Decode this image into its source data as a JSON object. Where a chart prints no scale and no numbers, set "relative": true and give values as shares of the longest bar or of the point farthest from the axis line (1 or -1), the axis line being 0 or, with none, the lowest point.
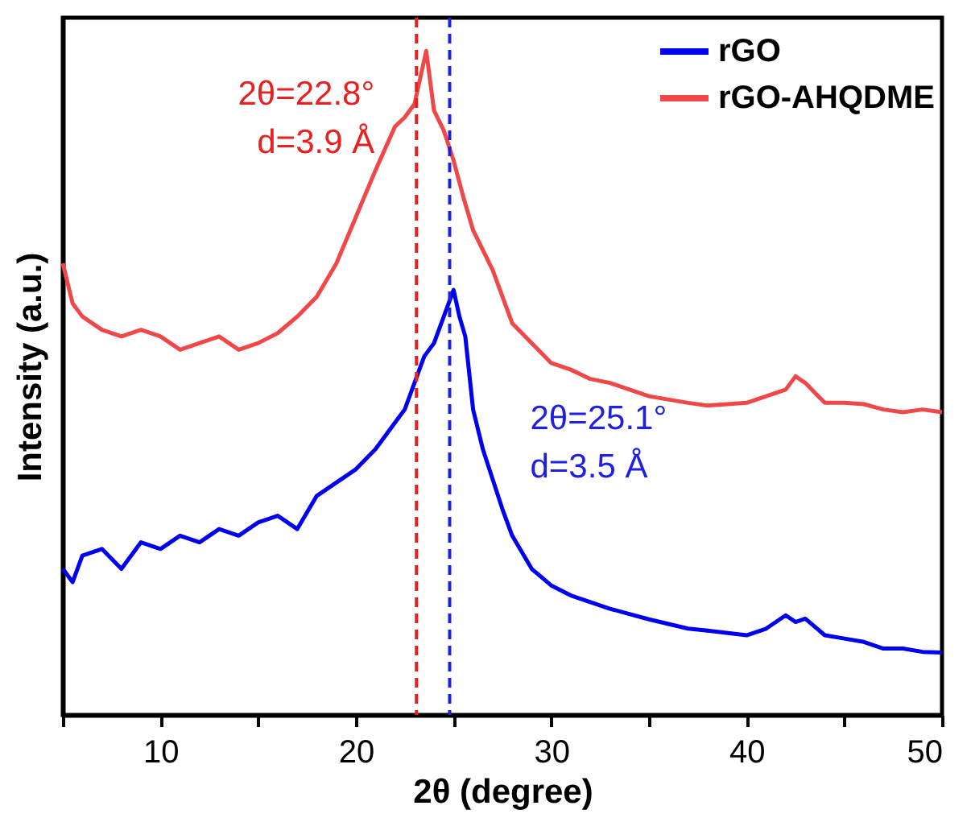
{
  "chart_data": {
    "type": "line",
    "relative": true,
    "xlabel": "2θ (degree)",
    "ylabel": "Intensity (a.u.)",
    "xlim": [
      5,
      50
    ],
    "xticks": [
      {
        "value": 5,
        "label": null
      },
      10,
      {
        "value": 15,
        "label": null
      },
      20,
      {
        "value": 25,
        "label": null
      },
      30,
      {
        "value": 35,
        "label": null
      },
      40,
      {
        "value": 45,
        "label": null
      },
      50
    ],
    "grid": false,
    "legend": "top right",
    "marker": "none",
    "line_style": "solid",
    "series": [
      {
        "name": "rGO",
        "color": "#0000f0",
        "x": [
          5,
          5.5,
          6,
          7,
          8,
          9,
          10,
          11,
          12,
          13,
          14,
          15,
          16,
          17,
          18,
          19,
          20,
          21,
          22,
          22.5,
          23,
          23.5,
          24,
          24.5,
          25,
          25.3,
          25.6,
          26,
          26.5,
          27,
          27.5,
          28,
          29,
          30,
          31,
          32,
          33,
          35,
          37,
          38,
          40,
          41,
          42,
          42.5,
          43,
          44,
          45,
          46,
          47,
          48,
          49,
          50
        ],
        "values": [
          0.22,
          0.2,
          0.24,
          0.25,
          0.22,
          0.26,
          0.25,
          0.27,
          0.26,
          0.28,
          0.27,
          0.29,
          0.3,
          0.28,
          0.33,
          0.35,
          0.37,
          0.4,
          0.44,
          0.46,
          0.5,
          0.54,
          0.56,
          0.6,
          0.64,
          0.6,
          0.57,
          0.46,
          0.4,
          0.355,
          0.31,
          0.27,
          0.22,
          0.195,
          0.18,
          0.17,
          0.16,
          0.144,
          0.13,
          0.127,
          0.12,
          0.13,
          0.15,
          0.14,
          0.145,
          0.12,
          0.115,
          0.11,
          0.1,
          0.1,
          0.095,
          0.094
        ]
      },
      {
        "name": "rGO-AHQDME",
        "color": "#f04848",
        "x": [
          5,
          5.5,
          6,
          7,
          8,
          9,
          10,
          11,
          12,
          13,
          14,
          15,
          16,
          17,
          18,
          19,
          20,
          21,
          22,
          22.5,
          23,
          23.3,
          23.6,
          24,
          24.5,
          25,
          25.5,
          26,
          26.5,
          27,
          28,
          29,
          30,
          31,
          32,
          33,
          35,
          37,
          38,
          40,
          41,
          42,
          42.5,
          43,
          44,
          45,
          46,
          47,
          48,
          49,
          50
        ],
        "values": [
          0.68,
          0.62,
          0.6,
          0.58,
          0.57,
          0.58,
          0.57,
          0.55,
          0.56,
          0.57,
          0.55,
          0.56,
          0.575,
          0.6,
          0.63,
          0.68,
          0.75,
          0.82,
          0.886,
          0.9,
          0.92,
          0.96,
          1.0,
          0.91,
          0.88,
          0.835,
          0.78,
          0.73,
          0.7,
          0.67,
          0.59,
          0.56,
          0.53,
          0.52,
          0.506,
          0.5,
          0.48,
          0.47,
          0.466,
          0.47,
          0.48,
          0.49,
          0.51,
          0.5,
          0.47,
          0.47,
          0.468,
          0.46,
          0.456,
          0.46,
          0.456
        ]
      }
    ],
    "ref_lines": [
      {
        "axis": "x",
        "value": 23.1,
        "color": "#e82020",
        "line_style": "dashed"
      },
      {
        "axis": "x",
        "value": 24.8,
        "color": "#2020e0",
        "line_style": "dashed"
      }
    ],
    "annotations": [
      "2θ=22.8°",
      "d=3.9 Å",
      "2θ=25.1°",
      "d=3.5 Å"
    ]
  }
}
